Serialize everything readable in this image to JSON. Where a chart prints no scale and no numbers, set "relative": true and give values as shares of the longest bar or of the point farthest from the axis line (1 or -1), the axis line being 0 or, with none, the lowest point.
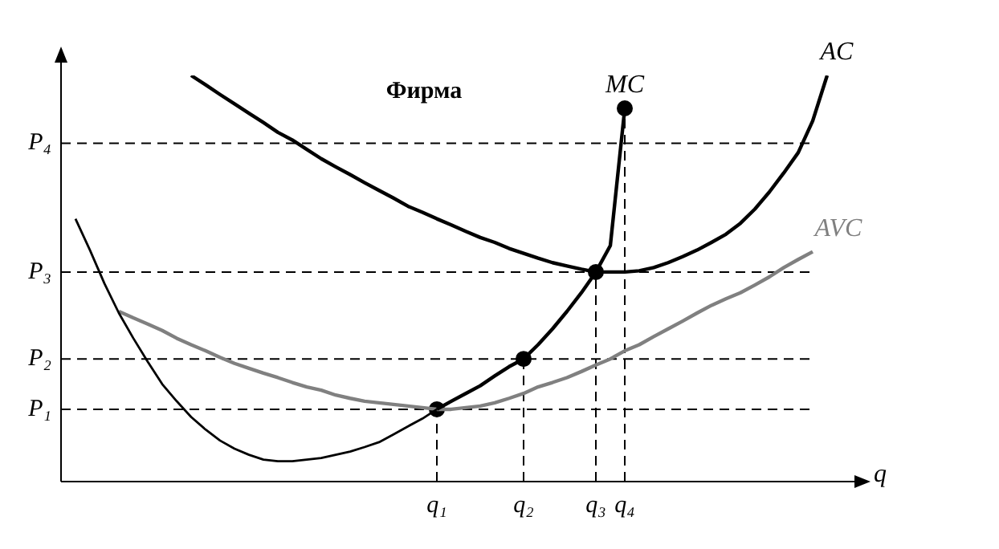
{
  "chart_data": {
    "type": "line",
    "title": "Фирма",
    "xlabel": "q",
    "relative": true,
    "tick_labels": "x",
    "legend": false,
    "marker": "none",
    "line_style": "solid",
    "categories": [
      null,
      null,
      null,
      null,
      null,
      null,
      null,
      null,
      null,
      null,
      null,
      null,
      null,
      null,
      null,
      null,
      null,
      null,
      null,
      null,
      null,
      null,
      null,
      null,
      null,
      null,
      "q₁",
      null,
      null,
      null,
      null,
      null,
      "q₂",
      null,
      null,
      null,
      null,
      "q₃",
      null,
      "q₄",
      null,
      null,
      null,
      null,
      null,
      null,
      null,
      null,
      null,
      null,
      null,
      null,
      null,
      null,
      null
    ],
    "series": [
      {
        "color": "#000000",
        "values": [
          null,
          0.647,
          0.57,
          0.488,
          0.415,
          0.353,
          0.295,
          0.24,
          0.198,
          0.159,
          0.128,
          0.101,
          0.081,
          0.066,
          0.054,
          0.05,
          0.05,
          0.054,
          0.058,
          0.066,
          0.074,
          0.085,
          0.097,
          0.116,
          0.136,
          0.155,
          0.178,
          null,
          null,
          null,
          null,
          null,
          null,
          null,
          null,
          null,
          null,
          null,
          null,
          null,
          null,
          null,
          null,
          null,
          null,
          null,
          null,
          null,
          null,
          null,
          null,
          null,
          null,
          null,
          null
        ]
      },
      {
        "name": "MC",
        "color": "#000000",
        "values": [
          null,
          null,
          null,
          null,
          null,
          null,
          null,
          null,
          null,
          null,
          null,
          null,
          null,
          null,
          null,
          null,
          null,
          null,
          null,
          null,
          null,
          null,
          null,
          null,
          null,
          null,
          0.178,
          0.198,
          0.217,
          0.236,
          0.26,
          0.283,
          0.302,
          0.337,
          0.376,
          0.419,
          0.465,
          0.516,
          0.581,
          0.919,
          null,
          null,
          null,
          null,
          null,
          null,
          null,
          null,
          null,
          null,
          null,
          null,
          null,
          null,
          null
        ]
      },
      {
        "name": "AC",
        "color": "#000000",
        "values": [
          null,
          null,
          null,
          null,
          null,
          null,
          null,
          null,
          null,
          1.0,
          0.977,
          0.953,
          0.93,
          0.907,
          0.884,
          0.86,
          0.841,
          0.818,
          0.795,
          0.775,
          0.756,
          0.736,
          0.717,
          0.698,
          0.678,
          0.663,
          0.647,
          0.632,
          0.616,
          0.601,
          0.589,
          0.574,
          0.562,
          0.55,
          0.539,
          0.531,
          0.523,
          0.516,
          0.516,
          0.516,
          0.519,
          0.527,
          0.539,
          0.554,
          0.57,
          0.589,
          0.609,
          0.636,
          0.671,
          0.713,
          0.76,
          0.81,
          0.888,
          1.0,
          null
        ]
      },
      {
        "name": "AVC",
        "color": "#808080",
        "values": [
          null,
          null,
          null,
          null,
          0.419,
          0.403,
          0.388,
          0.372,
          0.353,
          0.337,
          0.322,
          0.306,
          0.291,
          0.279,
          0.267,
          0.256,
          0.244,
          0.233,
          0.225,
          0.213,
          0.205,
          0.198,
          0.194,
          0.19,
          0.186,
          0.182,
          0.178,
          0.178,
          0.182,
          0.186,
          0.194,
          0.205,
          0.217,
          0.233,
          0.244,
          0.256,
          0.271,
          0.287,
          0.302,
          0.322,
          0.337,
          0.357,
          0.376,
          0.395,
          0.415,
          0.434,
          0.45,
          0.465,
          0.484,
          0.504,
          0.527,
          0.547,
          0.566,
          null,
          null
        ]
      },
      {
        "type": "scatter",
        "color": "#000000",
        "marker": "circle",
        "values": [
          null,
          null,
          null,
          null,
          null,
          null,
          null,
          null,
          null,
          null,
          null,
          null,
          null,
          null,
          null,
          null,
          null,
          null,
          null,
          null,
          null,
          null,
          null,
          null,
          null,
          null,
          0.178,
          null,
          null,
          null,
          null,
          null,
          0.302,
          null,
          null,
          null,
          null,
          0.516,
          null,
          0.919,
          null,
          null,
          null,
          null,
          null,
          null,
          null,
          null,
          null,
          null,
          null,
          null,
          null,
          null,
          null
        ]
      }
    ],
    "ref_lines": [
      {
        "axis": "y",
        "value": 0.833,
        "label": "P₄",
        "color": "#000000",
        "line_style": "dashed"
      },
      {
        "axis": "y",
        "value": 0.516,
        "label": "P₃",
        "color": "#000000",
        "line_style": "dashed"
      },
      {
        "axis": "y",
        "value": 0.302,
        "label": "P₂",
        "color": "#000000",
        "line_style": "dashed"
      },
      {
        "axis": "y",
        "value": 0.178,
        "label": "P₁",
        "color": "#000000",
        "line_style": "dashed"
      }
    ]
  }
}
